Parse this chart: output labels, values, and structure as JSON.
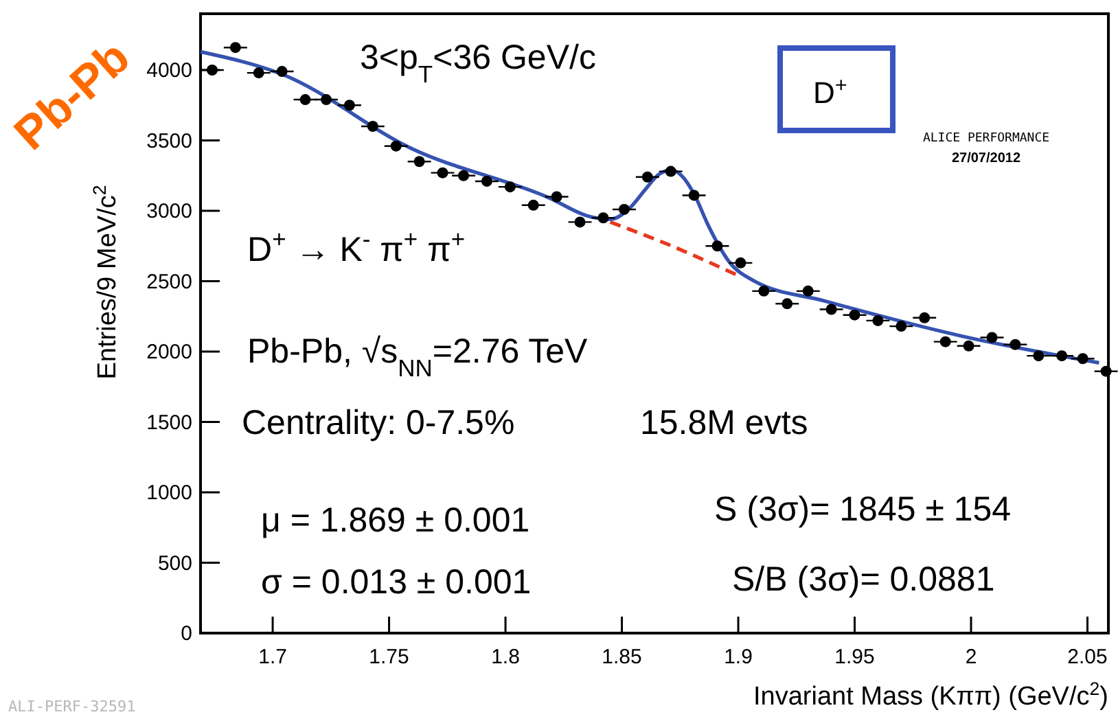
{
  "chart_data": {
    "type": "scatter",
    "xlabel": "Invariant Mass (Kππ) (GeV/c$^{2}$)",
    "ylabel": "Entries/9 MeV/c$^{2}$",
    "xlim": [
      1.669,
      2.059
    ],
    "ylim": [
      0,
      4400
    ],
    "xticks": [
      1.7,
      1.75,
      1.8,
      1.85,
      1.9,
      1.95,
      2,
      2.05
    ],
    "yticks": [
      0,
      500,
      1000,
      1500,
      2000,
      2500,
      3000,
      3500,
      4000
    ],
    "grid": false,
    "marker": "circle",
    "series": [
      {
        "color": "#000000",
        "x": [
          1.674,
          1.684,
          1.694,
          1.704,
          1.714,
          1.723,
          1.733,
          1.743,
          1.753,
          1.763,
          1.773,
          1.782,
          1.792,
          1.802,
          1.812,
          1.822,
          1.832,
          1.842,
          1.851,
          1.861,
          1.871,
          1.881,
          1.891,
          1.901,
          1.911,
          1.921,
          1.93,
          1.94,
          1.95,
          1.96,
          1.97,
          1.98,
          1.989,
          1.999,
          2.009,
          2.019,
          2.029,
          2.039,
          2.048,
          2.058
        ],
        "values": [
          4000,
          4160,
          3980,
          3990,
          3790,
          3790,
          3750,
          3600,
          3460,
          3350,
          3270,
          3250,
          3210,
          3170,
          3040,
          3100,
          2920,
          2950,
          3010,
          3240,
          3280,
          3110,
          2750,
          2630,
          2430,
          2340,
          2430,
          2300,
          2260,
          2220,
          2180,
          2240,
          2070,
          2040,
          2100,
          2050,
          1970,
          1970,
          1950,
          1860
        ],
        "xerrors": [
          0.005,
          0.005,
          0.005,
          0.005,
          0.005,
          0.005,
          0.005,
          0.005,
          0.005,
          0.005,
          0.005,
          0.005,
          0.005,
          0.005,
          0.005,
          0.005,
          0.005,
          0.005,
          0.005,
          0.005,
          0.005,
          0.005,
          0.005,
          0.005,
          0.005,
          0.005,
          0.005,
          0.005,
          0.005,
          0.005,
          0.005,
          0.005,
          0.005,
          0.005,
          0.005,
          0.005,
          0.005,
          0.005,
          0.005,
          0.005
        ]
      },
      {
        "type": "line",
        "color": "#e8391e",
        "line_style": "dashed",
        "marker": "none",
        "x": [
          1.845,
          1.87,
          1.9
        ],
        "values": [
          2920,
          2760,
          2540
        ]
      },
      {
        "type": "line",
        "color": "#3653b0",
        "line_style": "solid",
        "marker": "none",
        "x": [
          1.669,
          1.704,
          1.76,
          1.819,
          1.836,
          1.845,
          1.854,
          1.86,
          1.866,
          1.871,
          1.875,
          1.881,
          1.887,
          1.896,
          1.907,
          1.937,
          1.996,
          2.055
        ],
        "values": [
          4130,
          3970,
          3440,
          3090,
          2960,
          2940,
          3030,
          3150,
          3260,
          3290,
          3260,
          3120,
          2900,
          2640,
          2500,
          2360,
          2110,
          1920
        ]
      }
    ],
    "annotations": [
      "3<p$_{T}$<36 GeV/c",
      "D$^{+}$",
      "D$^{+}$ → K$^{-}$ π$^{+}$ π$^{+}$",
      "Pb-Pb, √s$_{NN}$=2.76 TeV",
      "Centrality: 0-7.5%",
      "15.8M evts",
      "μ = 1.869 ± 0.001",
      "σ = 0.013 ± 0.001",
      "S (3σ)= 1845 ± 154",
      "S/B (3σ)= 0.0881",
      "Pb-Pb",
      "ALICE PERFORMANCE",
      "27/07/2012",
      "ALI-PERF-32591"
    ]
  }
}
